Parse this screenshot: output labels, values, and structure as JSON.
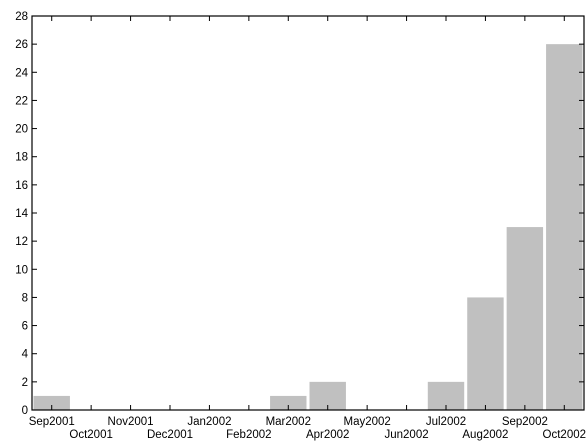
{
  "chart_data": {
    "type": "bar",
    "title": "",
    "xlabel": "",
    "ylabel": "",
    "categories": [
      "Sep2001",
      "Oct2001",
      "Nov2001",
      "Dec2001",
      "Jan2002",
      "Feb2002",
      "Mar2002",
      "Apr2002",
      "May2002",
      "Jun2002",
      "Jul2002",
      "Aug2002",
      "Sep2002",
      "Oct2002"
    ],
    "values": [
      1,
      0,
      0,
      0,
      0,
      0,
      1,
      2,
      0,
      0,
      2,
      8,
      13,
      26
    ],
    "ylim": [
      0,
      28
    ],
    "yticks": [
      0,
      2,
      4,
      6,
      8,
      10,
      12,
      14,
      16,
      18,
      20,
      22,
      24,
      26,
      28
    ],
    "grid": false,
    "bar_color": "#c0c0c0",
    "axis_color": "#000000"
  }
}
